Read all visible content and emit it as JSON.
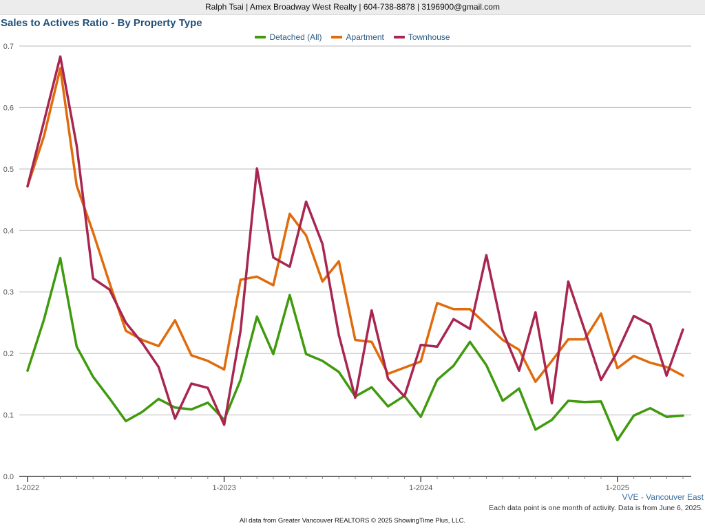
{
  "header": {
    "agent_line": "Ralph Tsai | Amex Broadway West Realty | 604-738-8878 | 3196900@gmail.com"
  },
  "footer": {
    "area": "VVE - Vancouver East",
    "note": "Each data point is one month of activity. Data is from June 6, 2025.",
    "copyright": "All data from Greater Vancouver REALTORS © 2025 ShowingTime Plus, LLC."
  },
  "chart_data": {
    "type": "line",
    "title": "Sales to Actives Ratio - By Property Type",
    "xlabel": "",
    "ylabel": "",
    "ylim": [
      0,
      0.7
    ],
    "yticks": [
      "0.0",
      "0.1",
      "0.2",
      "0.3",
      "0.4",
      "0.5",
      "0.6",
      "0.7"
    ],
    "xticks": [
      "1-2022",
      "1-2023",
      "1-2024",
      "1-2025"
    ],
    "x_start": "1-2022",
    "x_end": "5-2025",
    "grid": true,
    "legend_position": "top-center",
    "series": [
      {
        "name": "Detached (All)",
        "color": "#3f9a0e",
        "values": [
          0.172,
          0.255,
          0.355,
          0.211,
          0.162,
          0.127,
          0.09,
          0.105,
          0.126,
          0.112,
          0.109,
          0.12,
          0.092,
          0.157,
          0.26,
          0.199,
          0.295,
          0.199,
          0.188,
          0.17,
          0.13,
          0.145,
          0.114,
          0.131,
          0.097,
          0.157,
          0.18,
          0.219,
          0.181,
          0.123,
          0.143,
          0.076,
          0.092,
          0.123,
          0.121,
          0.122,
          0.059,
          0.099,
          0.111,
          0.097,
          0.099
        ]
      },
      {
        "name": "Apartment",
        "color": "#e06b0c",
        "values": [
          0.472,
          0.553,
          0.664,
          0.473,
          0.397,
          0.315,
          0.237,
          0.222,
          0.212,
          0.254,
          0.197,
          0.188,
          0.174,
          0.32,
          0.325,
          0.311,
          0.427,
          0.392,
          0.317,
          0.35,
          0.222,
          0.219,
          0.167,
          0.177,
          0.187,
          0.282,
          0.272,
          0.272,
          0.247,
          0.222,
          0.206,
          0.154,
          0.188,
          0.223,
          0.223,
          0.265,
          0.176,
          0.196,
          0.185,
          0.178,
          0.164
        ]
      },
      {
        "name": "Townhouse",
        "color": "#a8264f",
        "values": [
          0.472,
          0.577,
          0.683,
          0.538,
          0.322,
          0.304,
          0.25,
          0.217,
          0.178,
          0.094,
          0.151,
          0.144,
          0.084,
          0.237,
          0.501,
          0.356,
          0.341,
          0.447,
          0.378,
          0.23,
          0.128,
          0.27,
          0.159,
          0.13,
          0.214,
          0.211,
          0.256,
          0.24,
          0.36,
          0.236,
          0.172,
          0.267,
          0.119,
          0.317,
          0.238,
          0.157,
          0.203,
          0.261,
          0.247,
          0.164,
          0.239
        ]
      }
    ]
  }
}
